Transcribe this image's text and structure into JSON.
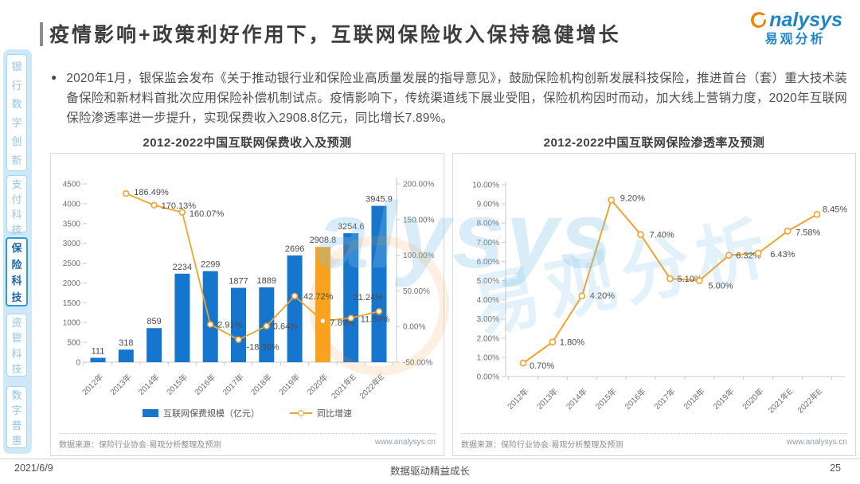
{
  "header": {
    "title": "疫情影响+政策利好作用下，互联网保险收入保持稳健增长",
    "logo_text": "analysys",
    "logo_cn": "易观分析"
  },
  "sidebar": {
    "items": [
      {
        "label": "银行数字创新",
        "selected": false
      },
      {
        "label": "支付科技",
        "selected": false
      },
      {
        "label": "保险科技",
        "selected": true
      },
      {
        "label": "资管科技",
        "selected": false
      },
      {
        "label": "数字普惠",
        "selected": false
      }
    ]
  },
  "bullet": {
    "marker": "●",
    "text": "2020年1月，银保监会发布《关于推动银行业和保险业高质量发展的指导意见》，鼓励保险机构创新发展科技保险，推进首台（套）重大技术装备保险和新材料首批次应用保险补偿机制试点。疫情影响下，传统渠道线下展业受阻，保险机构因时而动，加大线上营销力度，2020年互联网保险渗透率进一步提升，实现保费收入2908.8亿元，同比增长7.89%。"
  },
  "watermark": {
    "latin": "alysys",
    "cn": "易观分析"
  },
  "colors": {
    "bar_blue": "#1675cd",
    "bar_highlight": "#f9a21b",
    "line_orange": "#f2a22e",
    "logo_blue": "#1e86c8",
    "logo_orange": "#f08300",
    "sidebar_light_blue": "#cfe8f7"
  },
  "chart_data": [
    {
      "type": "bar",
      "combo": "bar+line",
      "title": "2012-2022中国互联网保费收入及预测",
      "categories": [
        "2012年",
        "2013年",
        "2014年",
        "2015年",
        "2016年",
        "2017年",
        "2018年",
        "2019年",
        "2020年",
        "2021年E",
        "2022年E"
      ],
      "series": [
        {
          "name": "互联网保费规模（亿元）",
          "type": "bar",
          "values": [
            111,
            318,
            859,
            2234,
            2299,
            1877,
            1889,
            2696,
            2908.8,
            3254.6,
            3945.9
          ],
          "highlight_category": "2020年"
        },
        {
          "name": "同比增速",
          "type": "line",
          "axis": "right",
          "unit": "%",
          "values": [
            null,
            186.49,
            170.13,
            160.07,
            2.91,
            -18.36,
            0.64,
            42.72,
            7.89,
            11.89,
            21.24
          ]
        }
      ],
      "left_axis": {
        "min": 0,
        "max": 4500,
        "step": 500
      },
      "right_axis": {
        "min": -50,
        "max": 200,
        "step": 50,
        "unit": "%"
      },
      "legend_position": "bottom",
      "grid": false,
      "source": "数据来源：保险行业协会·易观分析整理及预测",
      "website": "www.analysys.cn"
    },
    {
      "type": "line",
      "title": "2012-2022中国互联网保险渗透率及预测",
      "categories": [
        "2012年",
        "2013年",
        "2014年",
        "2015年",
        "2016年",
        "2017年",
        "2018年",
        "2019年",
        "2020年",
        "2021年E",
        "2022年E"
      ],
      "series": [
        {
          "name": "互联网保险渗透率",
          "type": "line",
          "unit": "%",
          "values": [
            0.7,
            1.8,
            4.2,
            9.2,
            7.4,
            5.1,
            5.0,
            6.32,
            6.43,
            7.58,
            8.45
          ]
        }
      ],
      "y_axis": {
        "min": 0,
        "max": 10,
        "step": 1,
        "unit": "%"
      },
      "grid": false,
      "source": "数据来源：保险行业协会·易观分析整理及预测",
      "website": "www.analysys.cn"
    }
  ],
  "footer": {
    "date": "2021/6/9",
    "slogan": "数据驱动精益成长",
    "page": "25"
  }
}
